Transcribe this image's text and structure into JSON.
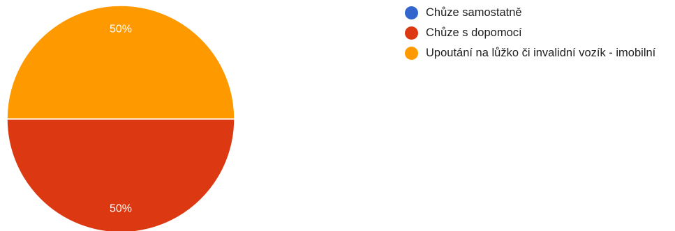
{
  "chart_data": {
    "type": "pie",
    "title": "",
    "categories": [
      "Chůze samostatně",
      "Chůze s dopomocí",
      "Upoutání na lůžko či invalidní vozík - imobilní"
    ],
    "values": [
      0,
      50,
      50
    ],
    "value_labels": [
      "",
      "50%",
      "50%"
    ],
    "colors": [
      "#3366cc",
      "#dc3912",
      "#ff9900"
    ],
    "legend_position": "right"
  }
}
